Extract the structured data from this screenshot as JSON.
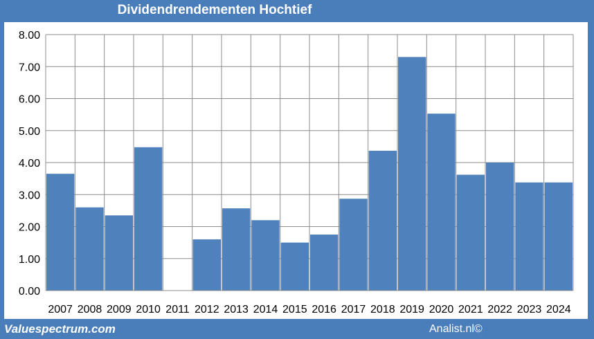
{
  "chart_data": {
    "type": "bar",
    "title": "Dividendrendementen Hochtief",
    "categories": [
      "2007",
      "2008",
      "2009",
      "2010",
      "2011",
      "2012",
      "2013",
      "2014",
      "2015",
      "2016",
      "2017",
      "2018",
      "2019",
      "2020",
      "2021",
      "2022",
      "2023",
      "2024"
    ],
    "values": [
      3.65,
      2.6,
      2.35,
      4.48,
      0.0,
      1.6,
      2.57,
      2.2,
      1.5,
      1.75,
      2.87,
      4.37,
      7.3,
      5.53,
      3.62,
      4.0,
      3.38,
      3.38
    ],
    "ylim": [
      0,
      8
    ],
    "yticks": [
      "0.00",
      "1.00",
      "2.00",
      "3.00",
      "4.00",
      "5.00",
      "6.00",
      "7.00",
      "8.00"
    ],
    "grid": true,
    "bar_color": "#4f81bd"
  },
  "footer": {
    "left": "Valuespectrum.com",
    "right": "Analist.nl©"
  }
}
